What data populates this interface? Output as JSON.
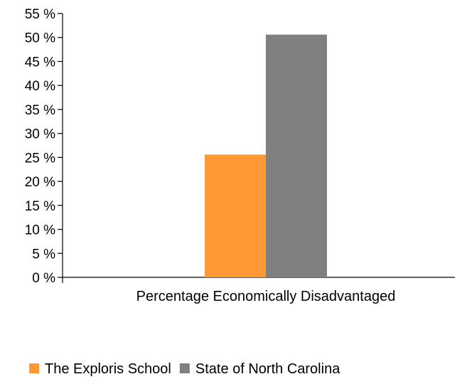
{
  "chart_data": {
    "type": "bar",
    "categories": [
      "Percentage Economically Disadvantaged"
    ],
    "series": [
      {
        "name": "The Exploris School",
        "values": [
          25.6
        ],
        "color": "#FF9933"
      },
      {
        "name": "State of North Carolina",
        "values": [
          50.6
        ],
        "color": "#808080"
      }
    ],
    "y_unit": "%",
    "ylim": [
      0,
      55
    ],
    "y_ticks": [
      0,
      5,
      10,
      15,
      20,
      25,
      30,
      35,
      40,
      45,
      50,
      55
    ],
    "grid": false,
    "legend_position": "bottom"
  }
}
